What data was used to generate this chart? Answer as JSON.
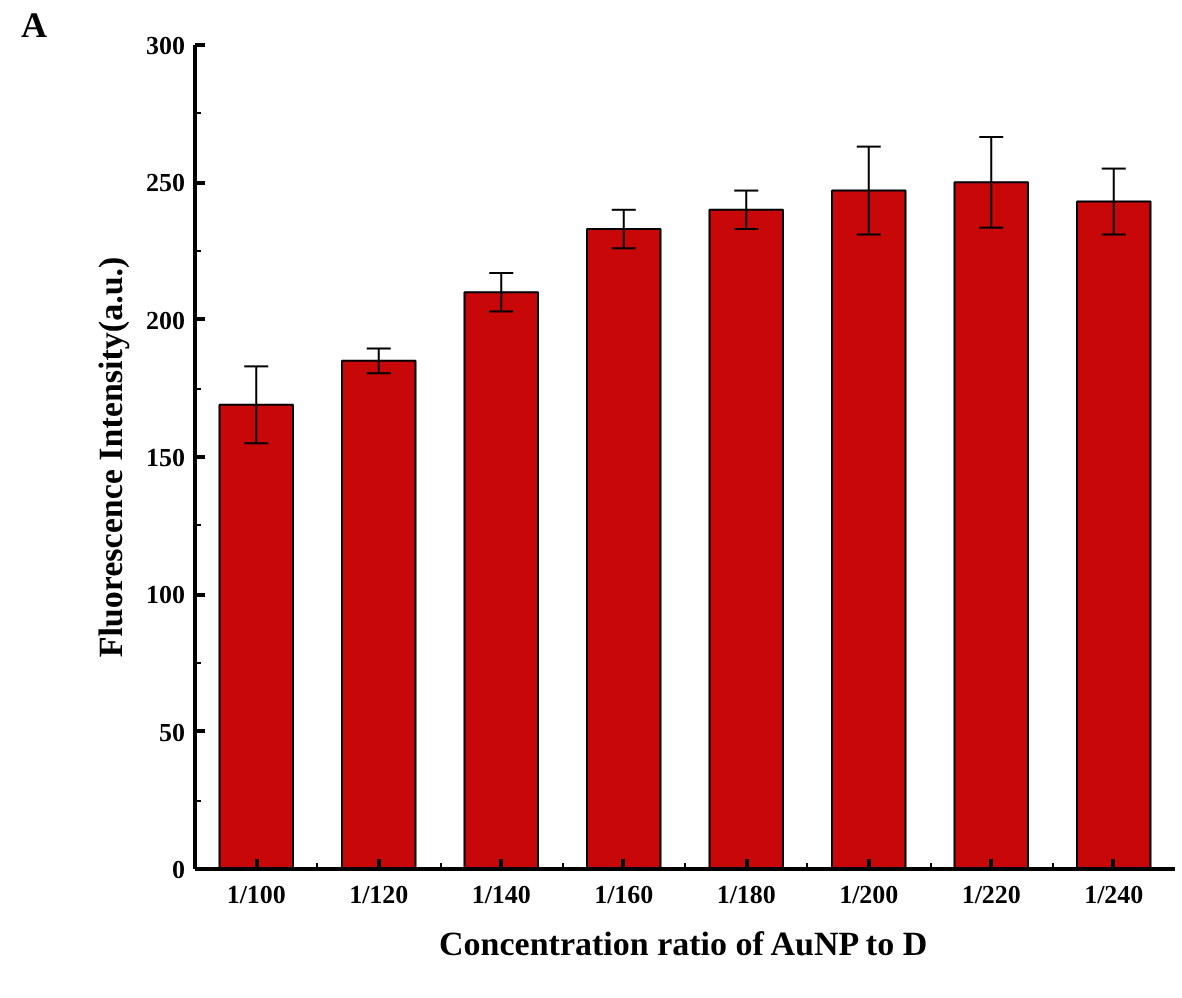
{
  "chart_data": {
    "type": "bar",
    "annotations": [
      "A"
    ],
    "xlabel": "Concentration ratio of AuNP to D",
    "ylabel": "Fluorescence Intensity(a.u.)",
    "categories": [
      "1/100",
      "1/120",
      "1/140",
      "1/160",
      "1/180",
      "1/200",
      "1/220",
      "1/240"
    ],
    "values": [
      169,
      185,
      210,
      233,
      240,
      247,
      250,
      243
    ],
    "errors": [
      14,
      4.5,
      7,
      7,
      7,
      16,
      16.5,
      12
    ],
    "color": "#c80808",
    "ylim": [
      0,
      300
    ],
    "yticks": [
      0,
      50,
      100,
      150,
      200,
      250,
      300
    ],
    "grid": false
  }
}
